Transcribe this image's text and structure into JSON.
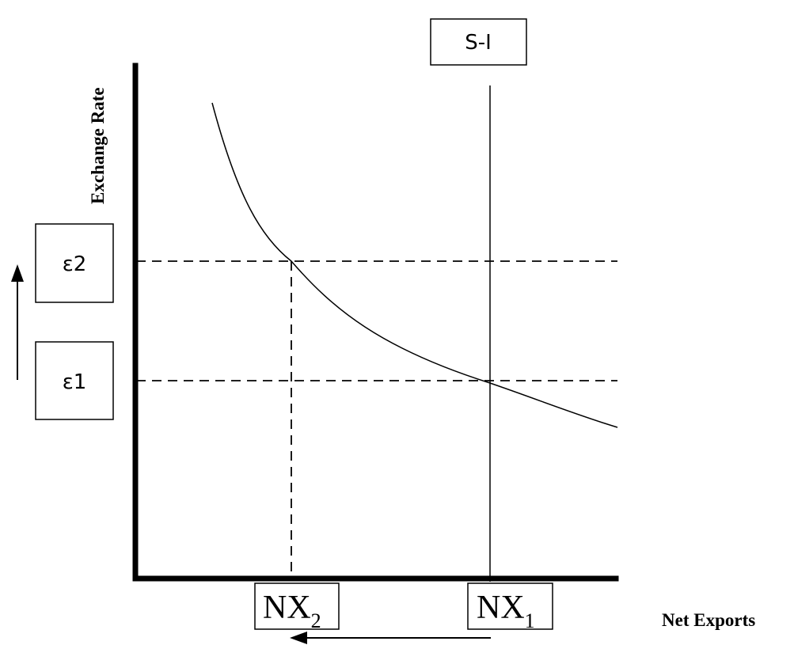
{
  "labels": {
    "y_axis": "Exchange Rate",
    "x_axis": "Net Exports",
    "si_line": "S-I",
    "epsilon_2": "ε2",
    "epsilon_1": "ε1",
    "nx_2_main": "NX",
    "nx_2_sub": "2",
    "nx_1_main": "NX",
    "nx_1_sub": "1"
  },
  "arrows": {
    "exchange_rate": "up",
    "net_exports": "left"
  }
}
